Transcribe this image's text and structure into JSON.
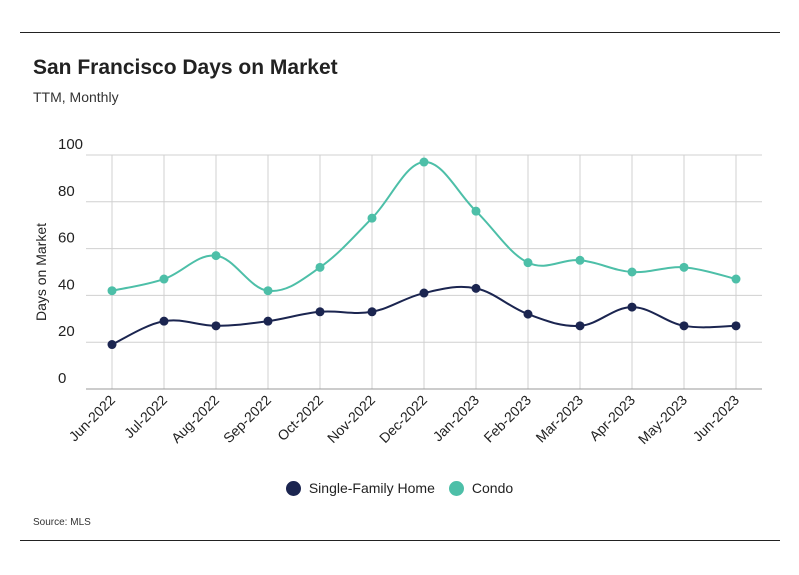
{
  "title": "San Francisco Days on Market",
  "subtitle": "TTM, Monthly",
  "source": "Source:  MLS",
  "chart_data": {
    "type": "line",
    "categories": [
      "Jun-2022",
      "Jul-2022",
      "Aug-2022",
      "Sep-2022",
      "Oct-2022",
      "Nov-2022",
      "Dec-2022",
      "Jan-2023",
      "Feb-2023",
      "Mar-2023",
      "Apr-2023",
      "May-2023",
      "Jun-2023"
    ],
    "series": [
      {
        "name": "Single-Family Home",
        "color": "#1b2550",
        "values": [
          19,
          29,
          27,
          29,
          33,
          33,
          41,
          43,
          32,
          27,
          35,
          27,
          27
        ]
      },
      {
        "name": "Condo",
        "color": "#4dbfa8",
        "values": [
          42,
          47,
          57,
          42,
          52,
          73,
          97,
          76,
          54,
          55,
          50,
          52,
          47
        ]
      }
    ],
    "ylabel": "Days on Market",
    "xlabel": "",
    "ylim": [
      0,
      100
    ],
    "yticks": [
      0,
      20,
      40,
      60,
      80,
      100
    ],
    "grid": true,
    "legend_position": "bottom"
  }
}
